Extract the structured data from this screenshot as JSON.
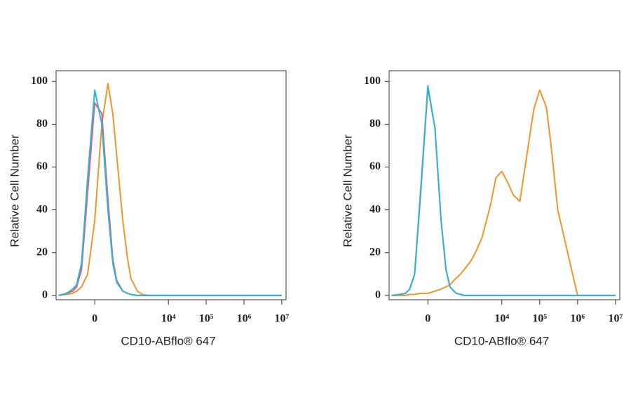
{
  "chart_data": [
    {
      "type": "line",
      "xscale": "biexponential",
      "ylabel": "Relative Cell Number",
      "xlabel": "CD10-ABflo® 647",
      "x": [
        -1000,
        -600,
        -400,
        -300,
        -200,
        -100,
        0,
        100,
        200,
        300,
        400,
        600,
        800,
        1000,
        1500,
        2000,
        3000,
        5000,
        7000,
        10000,
        15000,
        20000,
        30000,
        50000,
        70000,
        100000,
        150000,
        200000,
        300000,
        1000000,
        10000000
      ],
      "series": [
        {
          "color": "#f0952a",
          "values": [
            0,
            0.5,
            1,
            2,
            4,
            10,
            35,
            80,
            99,
            85,
            65,
            35,
            18,
            8,
            2,
            0.5,
            0,
            0,
            0,
            0,
            0,
            0,
            0,
            0,
            0,
            0,
            0,
            0,
            0,
            0,
            0
          ]
        },
        {
          "color": "#e0607e",
          "values": [
            0,
            1,
            2,
            4,
            12,
            48,
            90,
            85,
            45,
            17,
            7,
            2,
            1,
            0.5,
            0,
            0,
            0,
            0,
            0,
            0,
            0,
            0,
            0,
            0,
            0,
            0,
            0,
            0,
            0,
            0,
            0
          ]
        },
        {
          "color": "#2bb5d8",
          "values": [
            0,
            1,
            3,
            5,
            15,
            55,
            96,
            80,
            40,
            15,
            6,
            2,
            1,
            0.5,
            0,
            0,
            0,
            0,
            0,
            0,
            0,
            0,
            0,
            0,
            0,
            0,
            0,
            0,
            0,
            0,
            0
          ]
        }
      ],
      "xlim": [
        -1170,
        13000000
      ],
      "xticks": [
        0,
        {
          "value": 10000,
          "label": "10⁴"
        },
        {
          "value": 100000,
          "label": "10⁵"
        },
        {
          "value": 1000000,
          "label": "10⁶"
        },
        {
          "value": 10000000,
          "label": "10⁷"
        }
      ],
      "ylim": [
        -2,
        105
      ],
      "yticks": [
        0,
        20,
        40,
        60,
        80,
        100
      ]
    },
    {
      "type": "line",
      "xscale": "biexponential",
      "ylabel": "Relative Cell Number",
      "xlabel": "CD10-ABflo® 647",
      "x": [
        -1000,
        -600,
        -400,
        -300,
        -200,
        -100,
        0,
        100,
        200,
        300,
        400,
        600,
        800,
        1000,
        1500,
        2000,
        3000,
        5000,
        7000,
        10000,
        15000,
        20000,
        30000,
        50000,
        70000,
        100000,
        150000,
        200000,
        300000,
        1000000,
        10000000
      ],
      "series": [
        {
          "color": "#f0952a",
          "values": [
            0,
            0,
            0,
            0.5,
            0.5,
            1,
            1,
            2,
            3,
            4,
            5,
            8,
            10,
            12,
            16,
            20,
            27,
            42,
            55,
            58,
            52,
            47,
            44,
            70,
            87,
            96,
            88,
            70,
            40,
            0,
            0
          ]
        },
        {
          "color": "#e0607e",
          "values": [
            0,
            0.5,
            1,
            3,
            10,
            48,
            97,
            78,
            35,
            12,
            4,
            1,
            0.5,
            0,
            0,
            0,
            0,
            0,
            0,
            0,
            0,
            0,
            0,
            0,
            0,
            0,
            0,
            0,
            0,
            0,
            0
          ]
        },
        {
          "color": "#2bb5d8",
          "values": [
            0,
            0.5,
            1,
            3,
            10,
            50,
            98,
            78,
            35,
            12,
            4,
            1,
            0.5,
            0,
            0,
            0,
            0,
            0,
            0,
            0,
            0,
            0,
            0,
            0,
            0,
            0,
            0,
            0,
            0,
            0,
            0
          ]
        }
      ],
      "xlim": [
        -1170,
        13000000
      ],
      "xticks": [
        0,
        {
          "value": 10000,
          "label": "10⁴"
        },
        {
          "value": 100000,
          "label": "10⁵"
        },
        {
          "value": 1000000,
          "label": "10⁶"
        },
        {
          "value": 10000000,
          "label": "10⁷"
        }
      ],
      "ylim": [
        -2,
        105
      ],
      "yticks": [
        0,
        20,
        40,
        60,
        80,
        100
      ]
    }
  ]
}
